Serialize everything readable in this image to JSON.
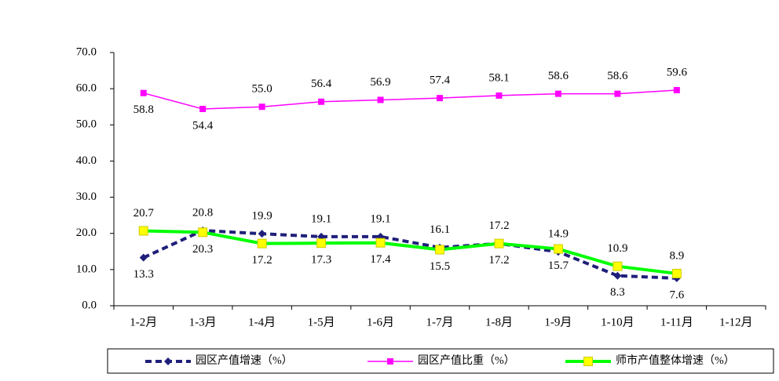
{
  "chart_data": {
    "type": "line",
    "categories": [
      "1-2月",
      "1-3月",
      "1-4月",
      "1-5月",
      "1-6月",
      "1-7月",
      "1-8月",
      "1-9月",
      "1-10月",
      "1-11月",
      "1-12月"
    ],
    "series": [
      {
        "name": "园区产值增速（%）",
        "color": "#1f1f7a",
        "marker": "diamond",
        "dashed": true,
        "values": [
          13.3,
          20.8,
          19.9,
          19.1,
          19.1,
          16.1,
          17.2,
          14.9,
          8.3,
          7.6,
          null
        ],
        "value_labels": [
          "13.3",
          "20.8",
          "19.9",
          "19.1",
          "19.1",
          "16.1",
          "17.2",
          "14.9",
          "8.3",
          "7.6",
          null
        ]
      },
      {
        "name": "园区产值比重（%）",
        "color": "#ff00ff",
        "marker": "square",
        "values": [
          58.8,
          54.4,
          55.0,
          56.4,
          56.9,
          57.4,
          58.1,
          58.6,
          58.6,
          59.6,
          null
        ],
        "value_labels": [
          "58.8",
          "54.4",
          "55.0",
          "56.4",
          "56.9",
          "57.4",
          "58.1",
          "58.6",
          "58.6",
          "59.6",
          null
        ]
      },
      {
        "name": "师市产值整体增速（%）",
        "color": "#00ff00",
        "marker": "square-big",
        "values": [
          20.7,
          20.3,
          17.2,
          17.3,
          17.4,
          15.5,
          17.2,
          15.7,
          10.9,
          8.9,
          null
        ],
        "value_labels": [
          "20.7",
          "20.3",
          "17.2",
          "17.3",
          "17.4",
          "15.5",
          "17.2",
          "15.7",
          "10.9",
          "8.9",
          null
        ]
      }
    ],
    "ylim": [
      0,
      70
    ],
    "yticks": [
      {
        "value": 0,
        "label": "0.0"
      },
      {
        "value": 10,
        "label": "10.0"
      },
      {
        "value": 20,
        "label": "20.0"
      },
      {
        "value": 30,
        "label": "30.0"
      },
      {
        "value": 40,
        "label": "40.0"
      },
      {
        "value": 50,
        "label": "50.0"
      },
      {
        "value": 60,
        "label": "60.0"
      },
      {
        "value": 70,
        "label": "70.0"
      }
    ],
    "legend": "bottom"
  }
}
